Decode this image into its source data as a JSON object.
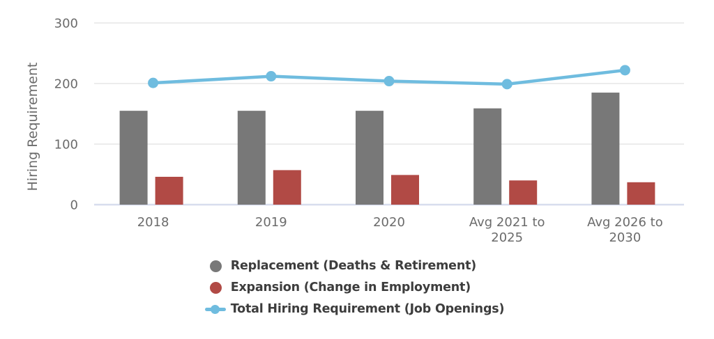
{
  "chart_data": {
    "type": "combo",
    "title": "",
    "xlabel": "",
    "ylabel": "Hiring Requirement",
    "ylim": [
      0,
      300
    ],
    "y_ticks": [
      0,
      100,
      200,
      300
    ],
    "grid": true,
    "legend_position": "bottom",
    "categories": [
      "2018",
      "2019",
      "2020",
      "Avg 2021 to 2025",
      "Avg 2026 to 2030"
    ],
    "category_label_lines": [
      [
        "2018"
      ],
      [
        "2019"
      ],
      [
        "2020"
      ],
      [
        "Avg 2021 to",
        "2025"
      ],
      [
        "Avg 2026 to",
        "2030"
      ]
    ],
    "series": [
      {
        "name": "Replacement (Deaths & Retirement)",
        "type": "bar",
        "color": "#787878",
        "values": [
          155,
          155,
          155,
          159,
          185
        ]
      },
      {
        "name": "Expansion (Change in Employment)",
        "type": "bar",
        "color": "#b14a45",
        "values": [
          46,
          57,
          49,
          40,
          37
        ]
      },
      {
        "name": "Total Hiring Requirement (Job Openings)",
        "type": "line",
        "color": "#6fbcdf",
        "values": [
          201,
          212,
          204,
          199,
          222
        ]
      }
    ]
  },
  "axis": {
    "tick_text_color": "#6b6b6b",
    "grid_color": "#ececec",
    "baseline_color": "#d7ddee"
  },
  "legend": {
    "text_color": "#3d3d3d"
  }
}
